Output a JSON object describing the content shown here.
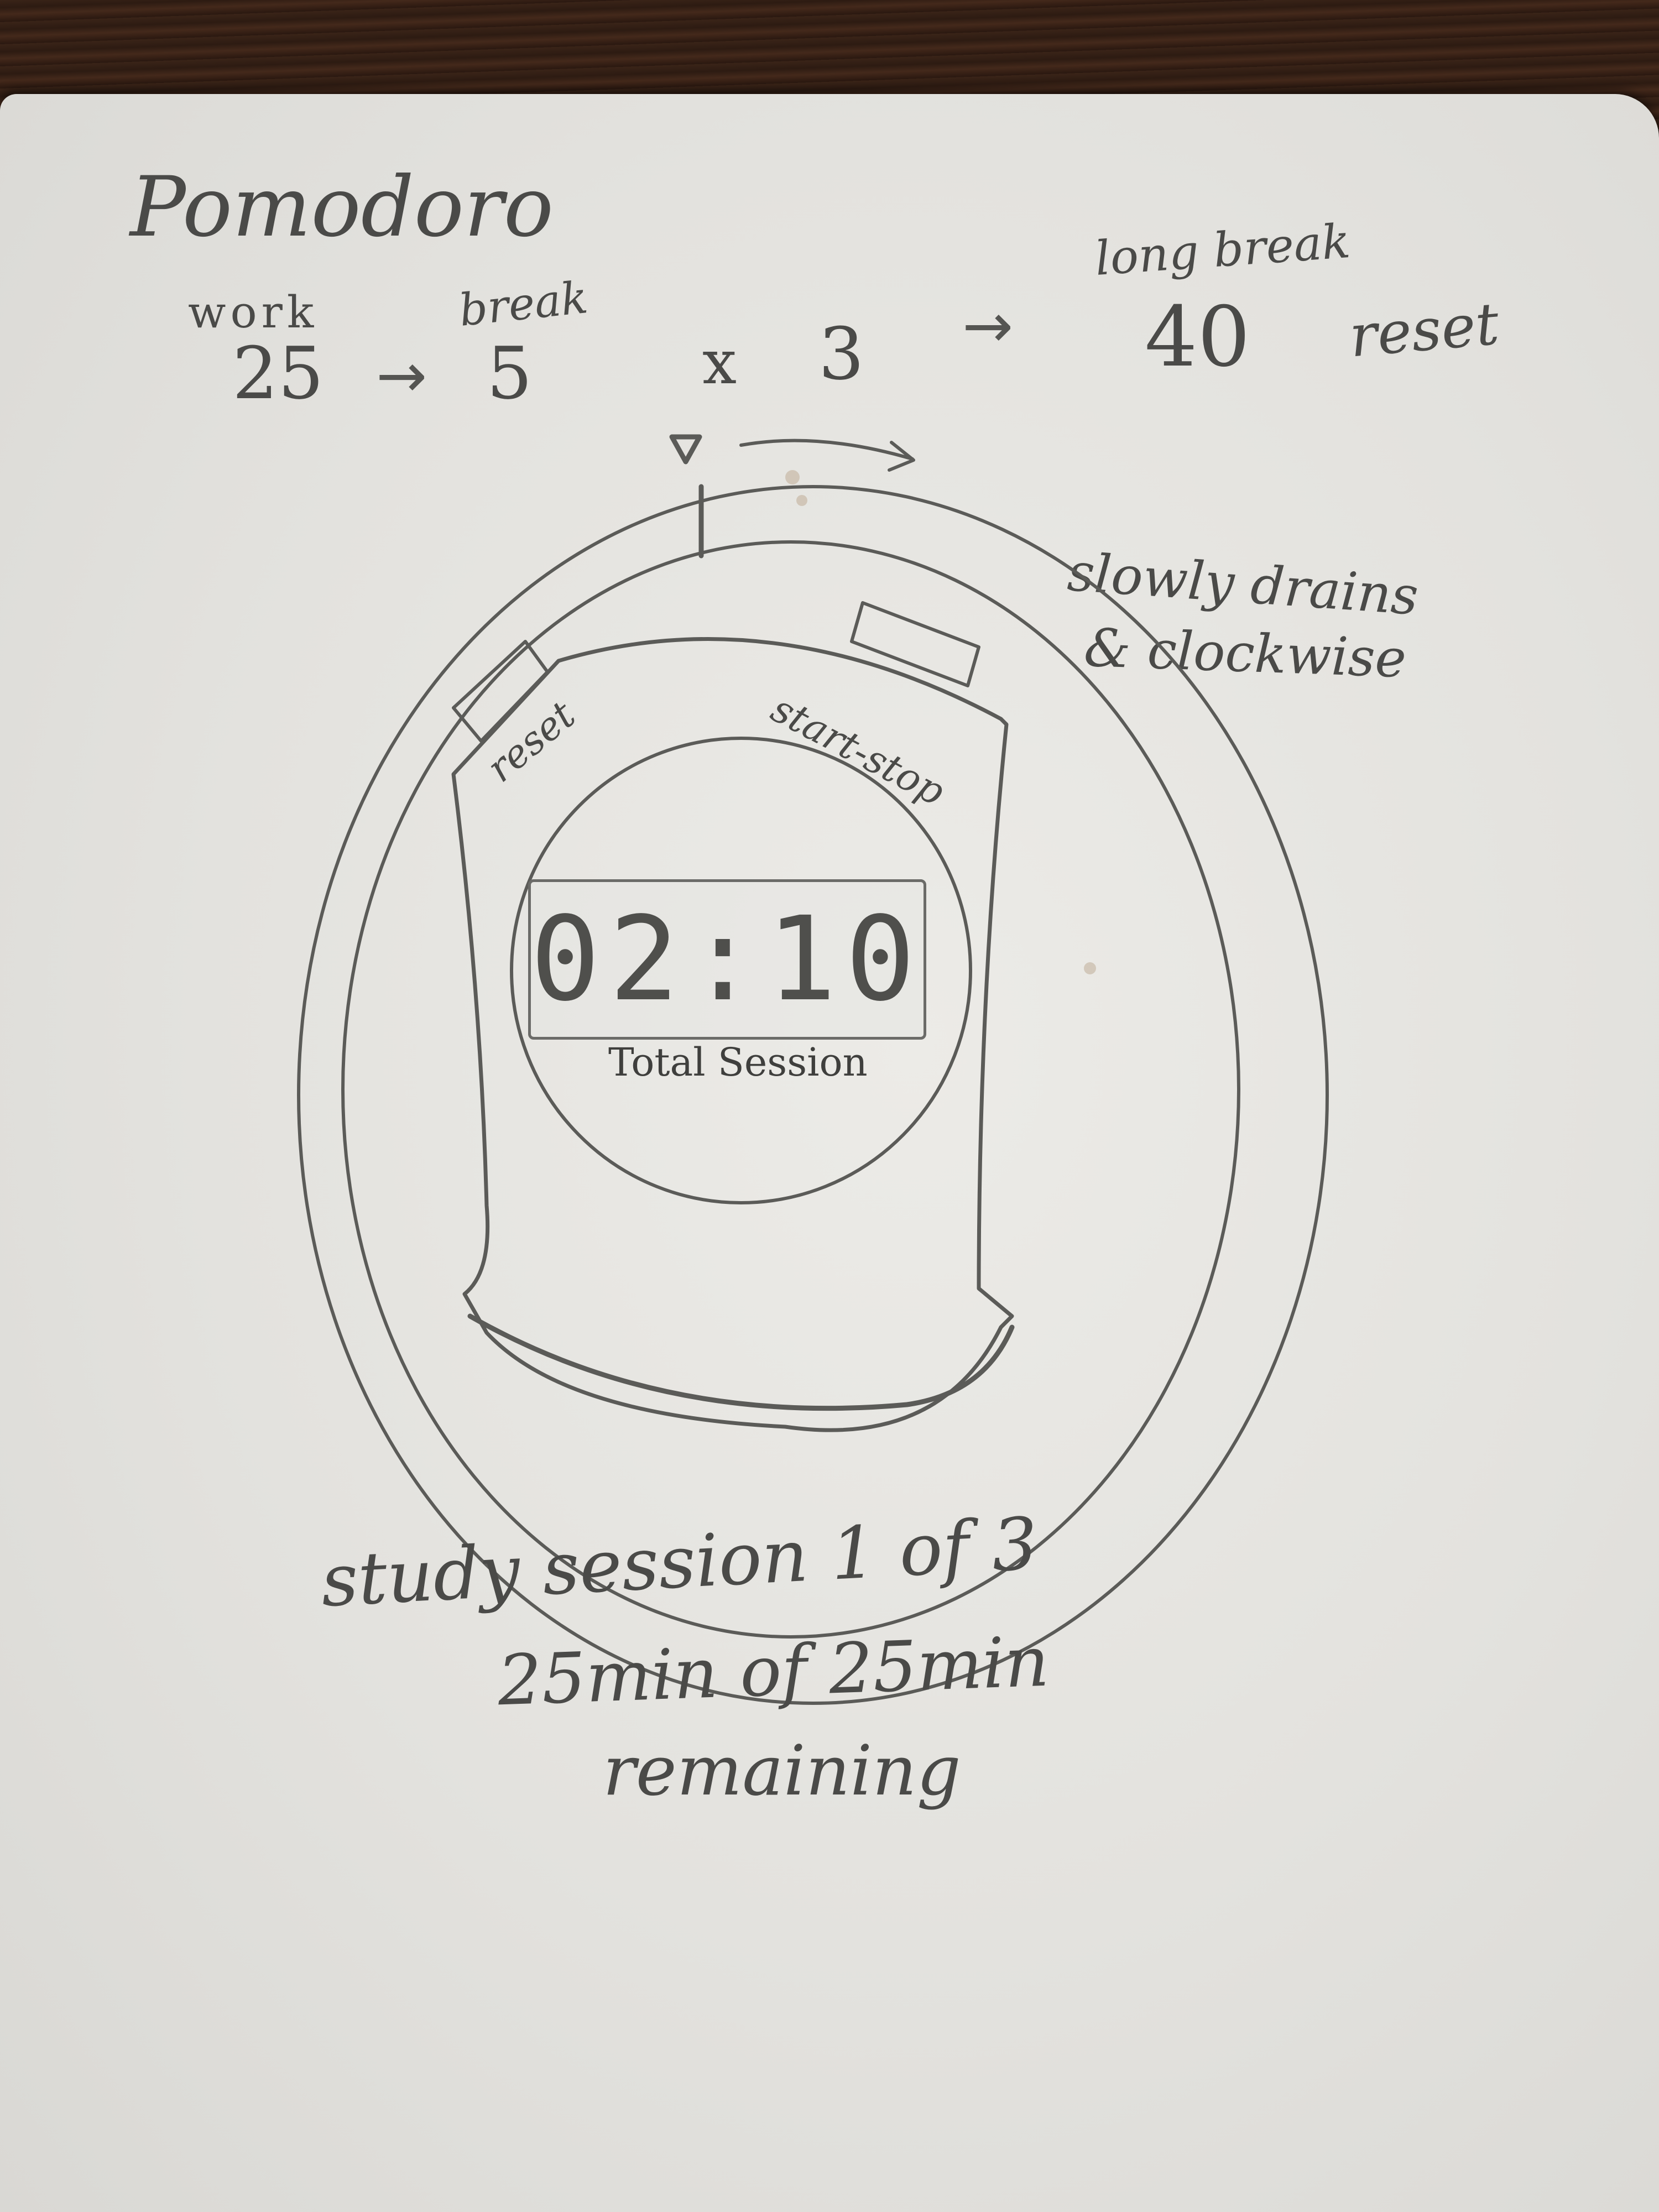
{
  "header": {
    "title": "Pomodoro"
  },
  "cycle": {
    "work_label": "work",
    "work_value": "25",
    "break_label": "break",
    "break_value": "5",
    "repeat_symbol": "x",
    "repeat_count": "3",
    "long_break_label": "long break",
    "long_break_value": "40",
    "end_action": "reset"
  },
  "annotations": {
    "drain_line_1": "slowly drains",
    "drain_line_2": "& clockwise"
  },
  "device": {
    "reset_button_label": "reset",
    "start_stop_button_label": "start-stop",
    "display_value": "02:10",
    "display_caption": "Total Session"
  },
  "status": {
    "line_1": "study session 1 of 3",
    "line_2": "25min of 25min",
    "line_3": "remaining"
  },
  "icons": {
    "start_marker": "triangle-down-icon",
    "rotation_arrow": "clockwise-arrow-icon",
    "flow_arrow": "right-arrow-icon"
  },
  "colors": {
    "pencil": "#4a4a48",
    "paper": "#e8e7e3",
    "table": "#2e1d14"
  }
}
